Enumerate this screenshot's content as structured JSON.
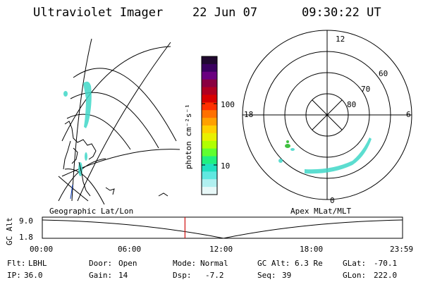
{
  "header": {
    "instrument": "Ultraviolet Imager",
    "date": "22 Jun 07",
    "time": "09:30:22 UT"
  },
  "left_panel": {
    "projection_label": "Geographic Lat/Lon"
  },
  "colorbar": {
    "unit_label": "photon cm⁻²s⁻¹",
    "ticks": [
      "100",
      "10"
    ],
    "colors_top_to_bottom": [
      "#200830",
      "#3a0060",
      "#6a0080",
      "#8a0040",
      "#b00020",
      "#d80000",
      "#ff3000",
      "#ff7000",
      "#ffa000",
      "#ffd000",
      "#e8f000",
      "#b0ff00",
      "#60ff30",
      "#20f080",
      "#20e0c0",
      "#60e8e0",
      "#b0f0f0",
      "#e8f8f8"
    ]
  },
  "polar_panel": {
    "projection_label": "Apex MLat/MLT",
    "mlt_labels": {
      "top": "12",
      "left": "18",
      "right": "6",
      "bottom": "0"
    },
    "lat_labels": [
      "60",
      "70",
      "80"
    ]
  },
  "timeline": {
    "y_label": "GC Alt",
    "y_ticks": [
      "9.0",
      "1.8"
    ],
    "x_ticks": [
      "00:00",
      "06:00",
      "12:00",
      "18:00",
      "23:59"
    ],
    "marker_time_hours": 9.506
  },
  "status": {
    "row1": [
      {
        "label": "Flt:",
        "value": "LBHL"
      },
      {
        "label": "Door:",
        "value": "Open"
      },
      {
        "label": "Mode:",
        "value": "Normal"
      },
      {
        "label": "GC Alt:",
        "value": "6.3 Re"
      },
      {
        "label": "GLat:",
        "value": "-70.1"
      }
    ],
    "row2": [
      {
        "label": "IP:",
        "value": "36.0"
      },
      {
        "label": "Gain:",
        "value": "14"
      },
      {
        "label": "Dsp:",
        "value": "-7.2"
      },
      {
        "label": "Seq:",
        "value": "39"
      },
      {
        "label": "GLon:",
        "value": "222.0"
      }
    ]
  }
}
